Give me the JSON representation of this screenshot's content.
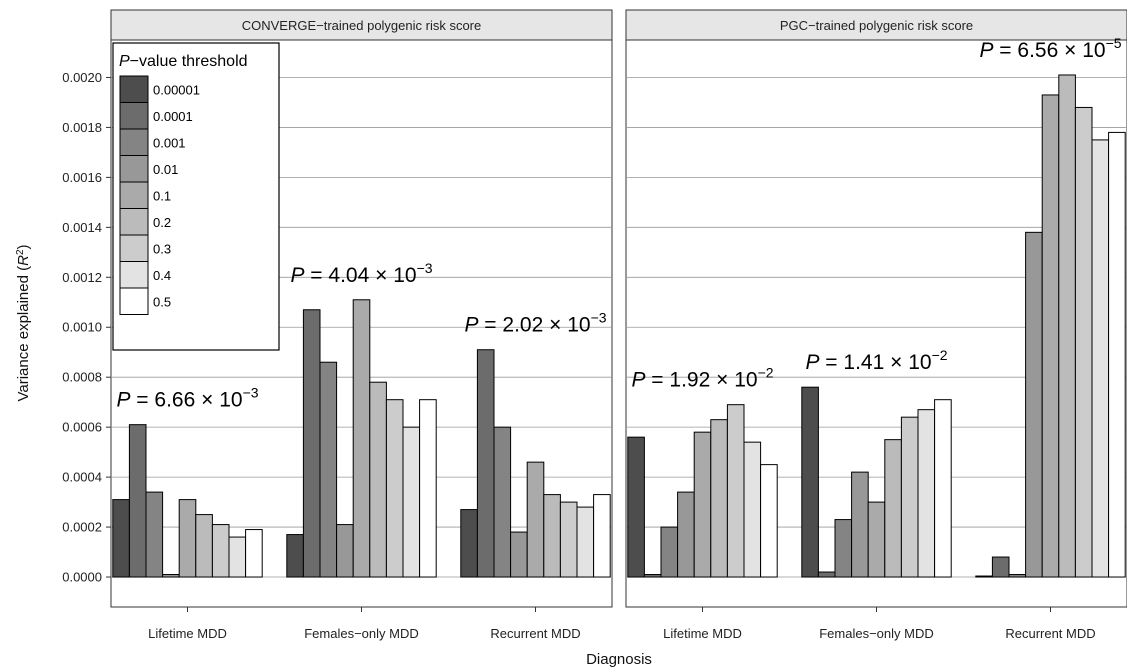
{
  "chart_data": {
    "type": "bar",
    "xlabel": "Diagnosis",
    "ylabel": "Variance explained (R²)",
    "ylim": [
      -0.00012,
      0.00215
    ],
    "yticks": [
      0.0,
      0.0002,
      0.0004,
      0.0006,
      0.0008,
      0.001,
      0.0012,
      0.0014,
      0.0016,
      0.0018,
      0.002
    ],
    "ytick_labels": [
      "0.0000",
      "0.0002",
      "0.0004",
      "0.0006",
      "0.0008",
      "0.0010",
      "0.0012",
      "0.0014",
      "0.0016",
      "0.0018",
      "0.0020"
    ],
    "grid": true,
    "categories": [
      "Lifetime MDD",
      "Females−only MDD",
      "Recurrent MDD"
    ],
    "legend": {
      "title_italic": "P",
      "title_rest": "−value threshold",
      "position": "top-left",
      "entries": [
        "0.00001",
        "0.0001",
        "0.001",
        "0.01",
        "0.1",
        "0.2",
        "0.3",
        "0.4",
        "0.5"
      ],
      "colors": [
        "#4d4d4d",
        "#6c6c6c",
        "#848484",
        "#989898",
        "#aaaaaa",
        "#bbbbbb",
        "#cccccc",
        "#e3e3e3",
        "#ffffff"
      ]
    },
    "panels": [
      {
        "title": "CONVERGE−trained polygenic risk score",
        "groups": [
          {
            "category": "Lifetime MDD",
            "values": [
              0.00031,
              0.00061,
              0.00034,
              1e-05,
              0.00031,
              0.00025,
              0.00021,
              0.00016,
              0.00019
            ],
            "pvalue": {
              "prefix": "P",
              "mantissa": " = 6.66 × 10",
              "exponent": "−3"
            }
          },
          {
            "category": "Females−only MDD",
            "values": [
              0.00017,
              0.00107,
              0.00086,
              0.00021,
              0.00111,
              0.00078,
              0.00071,
              0.0006,
              0.00071
            ],
            "pvalue": {
              "prefix": "P",
              "mantissa": " = 4.04 × 10",
              "exponent": "−3"
            }
          },
          {
            "category": "Recurrent MDD",
            "values": [
              0.00027,
              0.00091,
              0.0006,
              0.00018,
              0.00046,
              0.00033,
              0.0003,
              0.00028,
              0.00033
            ],
            "pvalue": {
              "prefix": "P",
              "mantissa": " = 2.02 × 10",
              "exponent": "−3"
            }
          }
        ]
      },
      {
        "title": "PGC−trained polygenic risk score",
        "groups": [
          {
            "category": "Lifetime MDD",
            "values": [
              0.00056,
              1e-05,
              0.0002,
              0.00034,
              0.00058,
              0.00063,
              0.00069,
              0.00054,
              0.00045
            ],
            "pvalue": {
              "prefix": "P",
              "mantissa": " = 1.92 × 10",
              "exponent": "−2"
            }
          },
          {
            "category": "Females−only MDD",
            "values": [
              0.00076,
              2e-05,
              0.00023,
              0.00042,
              0.0003,
              0.00055,
              0.00064,
              0.00067,
              0.00071
            ],
            "pvalue": {
              "prefix": "P",
              "mantissa": " = 1.41 × 10",
              "exponent": "−2"
            }
          },
          {
            "category": "Recurrent MDD",
            "values": [
              0.0,
              8e-05,
              1e-05,
              0.00138,
              0.00193,
              0.00201,
              0.00188,
              0.00175,
              0.00178
            ],
            "pvalue": {
              "prefix": "P",
              "mantissa": " = 6.56 × 10",
              "exponent": "−5"
            }
          }
        ]
      }
    ]
  }
}
